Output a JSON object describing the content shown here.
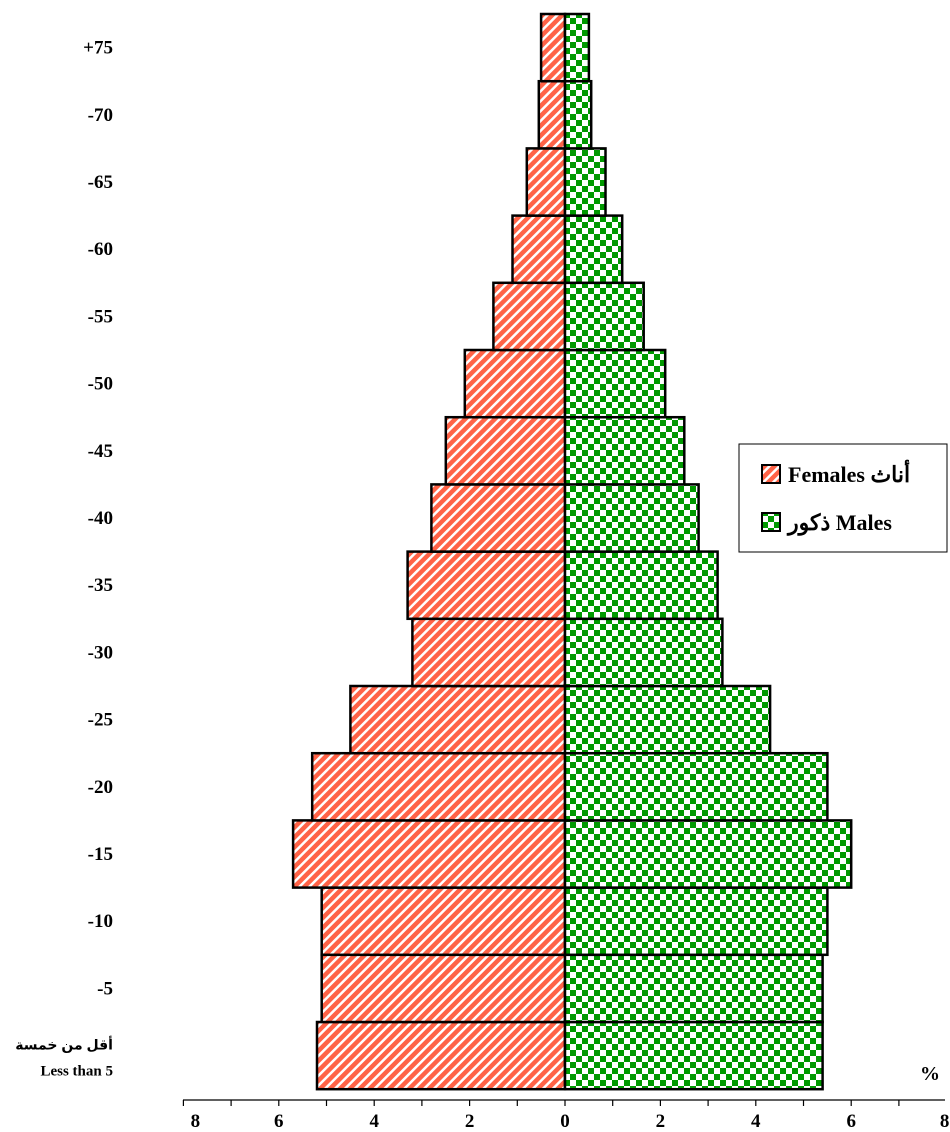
{
  "chart_data": {
    "type": "bar",
    "orientation": "horizontal",
    "subtype": "population-pyramid",
    "age_groups": [
      {
        "label": "Less than 5",
        "label_ar": "أقل من خمسة"
      },
      {
        "label": "-5"
      },
      {
        "label": "-10"
      },
      {
        "label": "-15"
      },
      {
        "label": "-20"
      },
      {
        "label": "-25"
      },
      {
        "label": "-30"
      },
      {
        "label": "-35"
      },
      {
        "label": "-40"
      },
      {
        "label": "-45"
      },
      {
        "label": "-50"
      },
      {
        "label": "-55"
      },
      {
        "label": "-60"
      },
      {
        "label": "-65"
      },
      {
        "label": "-70"
      },
      {
        "label": "+75"
      }
    ],
    "series": [
      {
        "name": "Females",
        "name_ar": "أناث",
        "side": "left",
        "color": "#ff6347",
        "pattern": "diagonal-stripes",
        "values": [
          5.2,
          5.1,
          5.1,
          5.7,
          5.3,
          4.5,
          3.2,
          3.3,
          2.8,
          2.5,
          2.1,
          1.5,
          1.1,
          0.8,
          0.55,
          0.5
        ]
      },
      {
        "name": "Males",
        "name_ar": "ذكور",
        "side": "right",
        "color": "#009900",
        "pattern": "checkerboard",
        "values": [
          5.4,
          5.4,
          5.5,
          6.0,
          5.5,
          4.3,
          3.3,
          3.2,
          2.8,
          2.5,
          2.1,
          1.65,
          1.2,
          0.85,
          0.55,
          0.5
        ]
      }
    ],
    "x_ticks": [
      "8",
      "6",
      "4",
      "2",
      "0",
      "2",
      "4",
      "6",
      "8"
    ],
    "x_unit": "%",
    "xlim": [
      -8,
      8
    ],
    "legend": {
      "placement": "right",
      "entries": [
        {
          "text": "Females أناث",
          "series": 0
        },
        {
          "text": "ذكور Males",
          "series": 1
        }
      ]
    },
    "grid": false
  }
}
